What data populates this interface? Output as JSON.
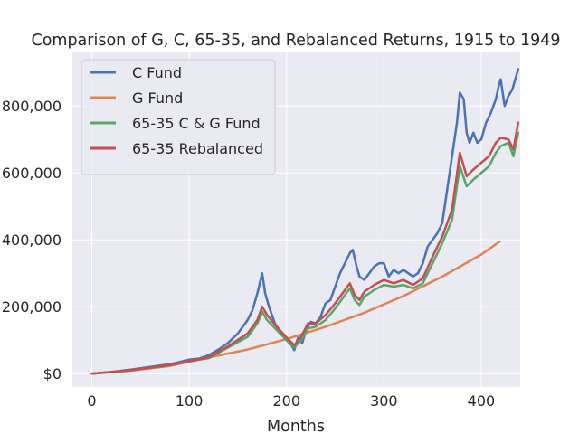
{
  "chart_data": {
    "type": "line",
    "title": "Comparison of G, C, 65-35, and Rebalanced Returns, 1915 to 1949",
    "xlabel": "Months",
    "ylabel": "",
    "xlim": [
      -20,
      440
    ],
    "ylim": [
      -40000,
      960000
    ],
    "xticks": [
      0,
      100,
      200,
      300,
      400
    ],
    "xtick_labels": [
      "0",
      "100",
      "200",
      "300",
      "400"
    ],
    "yticks": [
      0,
      200000,
      400000,
      600000,
      800000
    ],
    "ytick_labels": [
      "$0",
      "200,000",
      "400,000",
      "600,000",
      "800,000"
    ],
    "grid": true,
    "legend_position": "top-left",
    "series": [
      {
        "name": "C Fund",
        "color": "#4c72b0",
        "points": [
          [
            0,
            0
          ],
          [
            20,
            5000
          ],
          [
            40,
            12000
          ],
          [
            60,
            20000
          ],
          [
            80,
            28000
          ],
          [
            90,
            35000
          ],
          [
            100,
            42000
          ],
          [
            110,
            45000
          ],
          [
            120,
            55000
          ],
          [
            130,
            72000
          ],
          [
            140,
            92000
          ],
          [
            150,
            120000
          ],
          [
            160,
            160000
          ],
          [
            165,
            190000
          ],
          [
            170,
            240000
          ],
          [
            175,
            300000
          ],
          [
            178,
            240000
          ],
          [
            182,
            200000
          ],
          [
            188,
            150000
          ],
          [
            195,
            120000
          ],
          [
            200,
            100000
          ],
          [
            205,
            85000
          ],
          [
            208,
            70000
          ],
          [
            212,
            110000
          ],
          [
            216,
            90000
          ],
          [
            220,
            130000
          ],
          [
            225,
            155000
          ],
          [
            230,
            150000
          ],
          [
            235,
            170000
          ],
          [
            240,
            210000
          ],
          [
            245,
            220000
          ],
          [
            250,
            260000
          ],
          [
            255,
            300000
          ],
          [
            260,
            330000
          ],
          [
            265,
            360000
          ],
          [
            268,
            370000
          ],
          [
            272,
            320000
          ],
          [
            275,
            290000
          ],
          [
            280,
            280000
          ],
          [
            285,
            300000
          ],
          [
            290,
            320000
          ],
          [
            295,
            330000
          ],
          [
            300,
            330000
          ],
          [
            305,
            290000
          ],
          [
            310,
            310000
          ],
          [
            315,
            300000
          ],
          [
            320,
            310000
          ],
          [
            325,
            300000
          ],
          [
            330,
            290000
          ],
          [
            335,
            300000
          ],
          [
            340,
            330000
          ],
          [
            345,
            380000
          ],
          [
            350,
            400000
          ],
          [
            355,
            420000
          ],
          [
            360,
            450000
          ],
          [
            365,
            550000
          ],
          [
            370,
            650000
          ],
          [
            375,
            750000
          ],
          [
            378,
            840000
          ],
          [
            382,
            820000
          ],
          [
            385,
            720000
          ],
          [
            388,
            690000
          ],
          [
            392,
            720000
          ],
          [
            396,
            690000
          ],
          [
            400,
            700000
          ],
          [
            405,
            750000
          ],
          [
            410,
            780000
          ],
          [
            415,
            820000
          ],
          [
            418,
            860000
          ],
          [
            420,
            880000
          ],
          [
            424,
            800000
          ],
          [
            428,
            830000
          ],
          [
            432,
            850000
          ],
          [
            435,
            880000
          ],
          [
            438,
            910000
          ]
        ]
      },
      {
        "name": "G Fund",
        "color": "#dd8452",
        "points": [
          [
            0,
            0
          ],
          [
            40,
            9000
          ],
          [
            80,
            23000
          ],
          [
            120,
            48000
          ],
          [
            160,
            72000
          ],
          [
            200,
            103000
          ],
          [
            240,
            140000
          ],
          [
            280,
            182000
          ],
          [
            320,
            232000
          ],
          [
            360,
            290000
          ],
          [
            400,
            356000
          ],
          [
            419,
            395000
          ]
        ]
      },
      {
        "name": "65-35 C & G Fund",
        "color": "#55a868",
        "points": [
          [
            0,
            0
          ],
          [
            40,
            10000
          ],
          [
            80,
            25000
          ],
          [
            100,
            37000
          ],
          [
            120,
            46000
          ],
          [
            140,
            78000
          ],
          [
            160,
            110000
          ],
          [
            170,
            150000
          ],
          [
            175,
            185000
          ],
          [
            180,
            160000
          ],
          [
            190,
            130000
          ],
          [
            200,
            100000
          ],
          [
            208,
            78000
          ],
          [
            215,
            100000
          ],
          [
            222,
            135000
          ],
          [
            230,
            140000
          ],
          [
            240,
            160000
          ],
          [
            250,
            195000
          ],
          [
            260,
            235000
          ],
          [
            265,
            255000
          ],
          [
            270,
            220000
          ],
          [
            275,
            205000
          ],
          [
            280,
            230000
          ],
          [
            290,
            250000
          ],
          [
            300,
            265000
          ],
          [
            310,
            260000
          ],
          [
            320,
            265000
          ],
          [
            330,
            255000
          ],
          [
            340,
            270000
          ],
          [
            350,
            330000
          ],
          [
            360,
            390000
          ],
          [
            370,
            460000
          ],
          [
            378,
            620000
          ],
          [
            385,
            560000
          ],
          [
            392,
            580000
          ],
          [
            400,
            600000
          ],
          [
            408,
            620000
          ],
          [
            415,
            660000
          ],
          [
            420,
            680000
          ],
          [
            428,
            690000
          ],
          [
            433,
            650000
          ],
          [
            438,
            720000
          ]
        ]
      },
      {
        "name": "65-35 Rebalanced",
        "color": "#c44e52",
        "points": [
          [
            0,
            0
          ],
          [
            40,
            10000
          ],
          [
            80,
            25000
          ],
          [
            100,
            37000
          ],
          [
            120,
            48000
          ],
          [
            140,
            82000
          ],
          [
            160,
            120000
          ],
          [
            170,
            160000
          ],
          [
            175,
            200000
          ],
          [
            180,
            175000
          ],
          [
            190,
            140000
          ],
          [
            200,
            108000
          ],
          [
            208,
            85000
          ],
          [
            215,
            110000
          ],
          [
            222,
            150000
          ],
          [
            230,
            150000
          ],
          [
            240,
            175000
          ],
          [
            250,
            210000
          ],
          [
            260,
            250000
          ],
          [
            265,
            270000
          ],
          [
            270,
            235000
          ],
          [
            275,
            220000
          ],
          [
            280,
            245000
          ],
          [
            290,
            265000
          ],
          [
            300,
            280000
          ],
          [
            310,
            270000
          ],
          [
            320,
            280000
          ],
          [
            330,
            265000
          ],
          [
            340,
            285000
          ],
          [
            350,
            350000
          ],
          [
            360,
            410000
          ],
          [
            370,
            490000
          ],
          [
            378,
            660000
          ],
          [
            385,
            590000
          ],
          [
            392,
            610000
          ],
          [
            400,
            630000
          ],
          [
            408,
            650000
          ],
          [
            415,
            690000
          ],
          [
            420,
            705000
          ],
          [
            428,
            700000
          ],
          [
            433,
            670000
          ],
          [
            438,
            750000
          ]
        ]
      }
    ]
  }
}
